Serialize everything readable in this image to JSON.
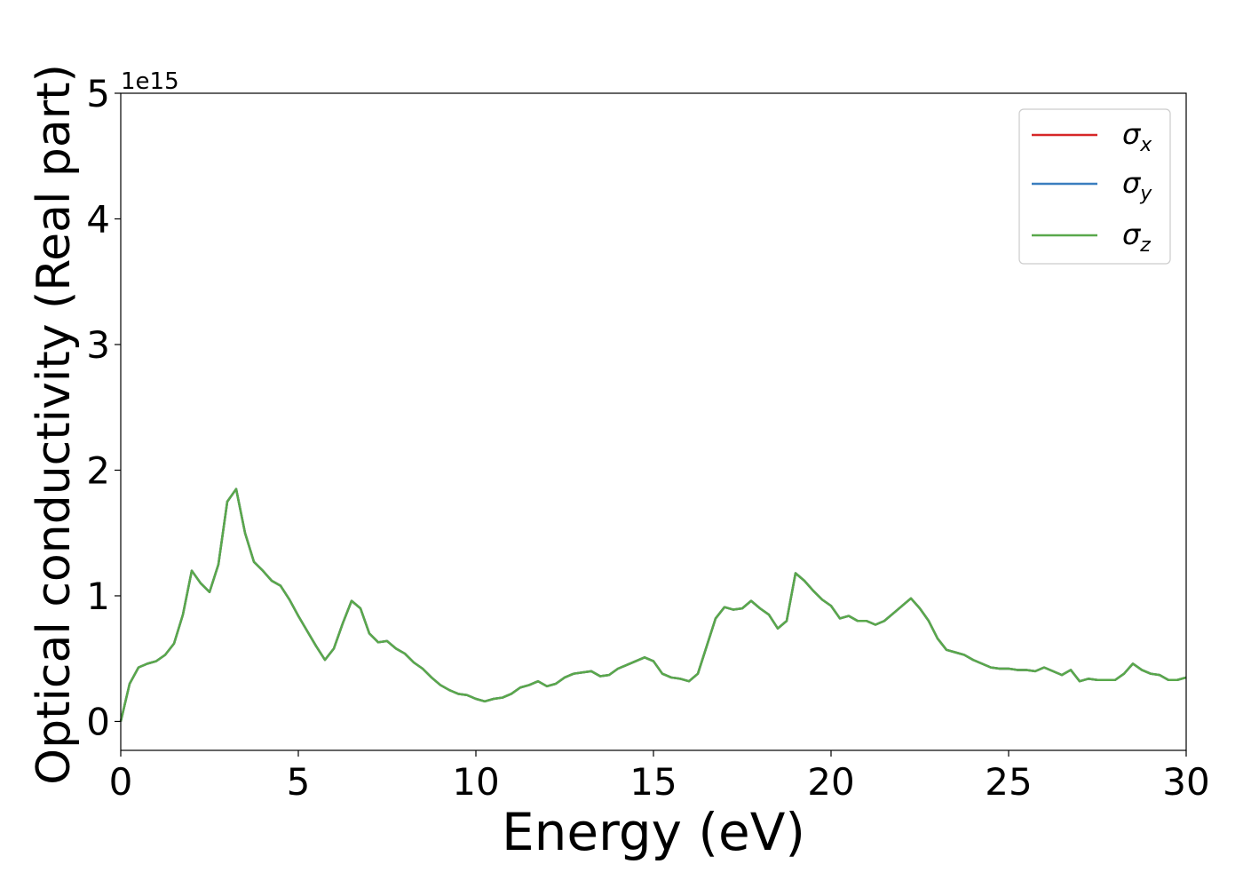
{
  "chart_data": {
    "type": "line",
    "xlabel": "Energy (eV)",
    "ylabel": "Optical conductivity (Real part)",
    "offset_label": "1e15",
    "x": [
      0,
      0.25,
      0.5,
      0.75,
      1,
      1.25,
      1.5,
      1.75,
      2,
      2.25,
      2.5,
      2.75,
      3,
      3.25,
      3.5,
      3.75,
      4,
      4.25,
      4.5,
      4.75,
      5,
      5.25,
      5.5,
      5.75,
      6,
      6.25,
      6.5,
      6.75,
      7,
      7.25,
      7.5,
      7.75,
      8,
      8.25,
      8.5,
      8.75,
      9,
      9.25,
      9.5,
      9.75,
      10,
      10.25,
      10.5,
      10.75,
      11,
      11.25,
      11.5,
      11.75,
      12,
      12.25,
      12.5,
      12.75,
      13,
      13.25,
      13.5,
      13.75,
      14,
      14.25,
      14.5,
      14.75,
      15,
      15.25,
      15.5,
      15.75,
      16,
      16.25,
      16.5,
      16.75,
      17,
      17.25,
      17.5,
      17.75,
      18,
      18.25,
      18.5,
      18.75,
      19,
      19.25,
      19.5,
      19.75,
      20,
      20.25,
      20.5,
      20.75,
      21,
      21.25,
      21.5,
      21.75,
      22,
      22.25,
      22.5,
      22.75,
      23,
      23.25,
      23.5,
      23.75,
      24,
      24.25,
      24.5,
      24.75,
      25,
      25.25,
      25.5,
      25.75,
      26,
      26.25,
      26.5,
      26.75,
      27,
      27.25,
      27.5,
      27.75,
      28,
      28.25,
      28.5,
      28.75,
      29,
      29.25,
      29.5,
      29.75,
      30
    ],
    "series": [
      {
        "name": "σx",
        "color": "#d62728",
        "values": [
          0,
          0.3,
          0.43,
          0.46,
          0.48,
          0.53,
          0.62,
          0.85,
          1.2,
          1.1,
          1.03,
          1.25,
          1.75,
          1.85,
          1.5,
          1.27,
          1.2,
          1.12,
          1.08,
          0.97,
          0.84,
          0.72,
          0.6,
          0.49,
          0.58,
          0.78,
          0.96,
          0.9,
          0.7,
          0.63,
          0.64,
          0.58,
          0.54,
          0.47,
          0.42,
          0.35,
          0.29,
          0.25,
          0.22,
          0.21,
          0.18,
          0.16,
          0.18,
          0.19,
          0.22,
          0.27,
          0.29,
          0.32,
          0.28,
          0.3,
          0.35,
          0.38,
          0.39,
          0.4,
          0.36,
          0.37,
          0.42,
          0.45,
          0.48,
          0.51,
          0.48,
          0.38,
          0.35,
          0.34,
          0.32,
          0.38,
          0.6,
          0.82,
          0.91,
          0.89,
          0.9,
          0.96,
          0.9,
          0.85,
          0.74,
          0.8,
          1.18,
          1.12,
          1.04,
          0.97,
          0.92,
          0.82,
          0.84,
          0.8,
          0.8,
          0.77,
          0.8,
          0.86,
          0.92,
          0.98,
          0.9,
          0.8,
          0.66,
          0.57,
          0.55,
          0.53,
          0.49,
          0.46,
          0.43,
          0.42,
          0.42,
          0.41,
          0.41,
          0.4,
          0.43,
          0.4,
          0.37,
          0.41,
          0.32,
          0.34,
          0.33,
          0.33,
          0.33,
          0.38,
          0.46,
          0.41,
          0.38,
          0.37,
          0.33,
          0.33,
          0.35
        ]
      },
      {
        "name": "σy",
        "color": "#3a7ebf",
        "values": [
          0,
          0.3,
          0.43,
          0.46,
          0.48,
          0.53,
          0.62,
          0.85,
          1.2,
          1.1,
          1.03,
          1.25,
          1.75,
          1.85,
          1.5,
          1.27,
          1.2,
          1.12,
          1.08,
          0.97,
          0.84,
          0.72,
          0.6,
          0.49,
          0.58,
          0.78,
          0.96,
          0.9,
          0.7,
          0.63,
          0.64,
          0.58,
          0.54,
          0.47,
          0.42,
          0.35,
          0.29,
          0.25,
          0.22,
          0.21,
          0.18,
          0.16,
          0.18,
          0.19,
          0.22,
          0.27,
          0.29,
          0.32,
          0.28,
          0.3,
          0.35,
          0.38,
          0.39,
          0.4,
          0.36,
          0.37,
          0.42,
          0.45,
          0.48,
          0.51,
          0.48,
          0.38,
          0.35,
          0.34,
          0.32,
          0.38,
          0.6,
          0.82,
          0.91,
          0.89,
          0.9,
          0.96,
          0.9,
          0.85,
          0.74,
          0.8,
          1.18,
          1.12,
          1.04,
          0.97,
          0.92,
          0.82,
          0.84,
          0.8,
          0.8,
          0.77,
          0.8,
          0.86,
          0.92,
          0.98,
          0.9,
          0.8,
          0.66,
          0.57,
          0.55,
          0.53,
          0.49,
          0.46,
          0.43,
          0.42,
          0.42,
          0.41,
          0.41,
          0.4,
          0.43,
          0.4,
          0.37,
          0.41,
          0.32,
          0.34,
          0.33,
          0.33,
          0.33,
          0.38,
          0.46,
          0.41,
          0.38,
          0.37,
          0.33,
          0.33,
          0.35
        ]
      },
      {
        "name": "σz",
        "color": "#59a84b",
        "values": [
          0,
          0.3,
          0.43,
          0.46,
          0.48,
          0.53,
          0.62,
          0.85,
          1.2,
          1.1,
          1.03,
          1.25,
          1.75,
          1.85,
          1.5,
          1.27,
          1.2,
          1.12,
          1.08,
          0.97,
          0.84,
          0.72,
          0.6,
          0.49,
          0.58,
          0.78,
          0.96,
          0.9,
          0.7,
          0.63,
          0.64,
          0.58,
          0.54,
          0.47,
          0.42,
          0.35,
          0.29,
          0.25,
          0.22,
          0.21,
          0.18,
          0.16,
          0.18,
          0.19,
          0.22,
          0.27,
          0.29,
          0.32,
          0.28,
          0.3,
          0.35,
          0.38,
          0.39,
          0.4,
          0.36,
          0.37,
          0.42,
          0.45,
          0.48,
          0.51,
          0.48,
          0.38,
          0.35,
          0.34,
          0.32,
          0.38,
          0.6,
          0.82,
          0.91,
          0.89,
          0.9,
          0.96,
          0.9,
          0.85,
          0.74,
          0.8,
          1.18,
          1.12,
          1.04,
          0.97,
          0.92,
          0.82,
          0.84,
          0.8,
          0.8,
          0.77,
          0.8,
          0.86,
          0.92,
          0.98,
          0.9,
          0.8,
          0.66,
          0.57,
          0.55,
          0.53,
          0.49,
          0.46,
          0.43,
          0.42,
          0.42,
          0.41,
          0.41,
          0.4,
          0.43,
          0.4,
          0.37,
          0.41,
          0.32,
          0.34,
          0.33,
          0.33,
          0.33,
          0.38,
          0.46,
          0.41,
          0.38,
          0.37,
          0.33,
          0.33,
          0.35
        ]
      }
    ],
    "xlim": [
      0,
      30
    ],
    "xticks": [
      0,
      5,
      10,
      15,
      20,
      25,
      30
    ],
    "ylim": [
      -0.23,
      5
    ],
    "yticks": [
      0,
      1,
      2,
      3,
      4,
      5
    ],
    "grid": false,
    "legend": "upper right"
  }
}
